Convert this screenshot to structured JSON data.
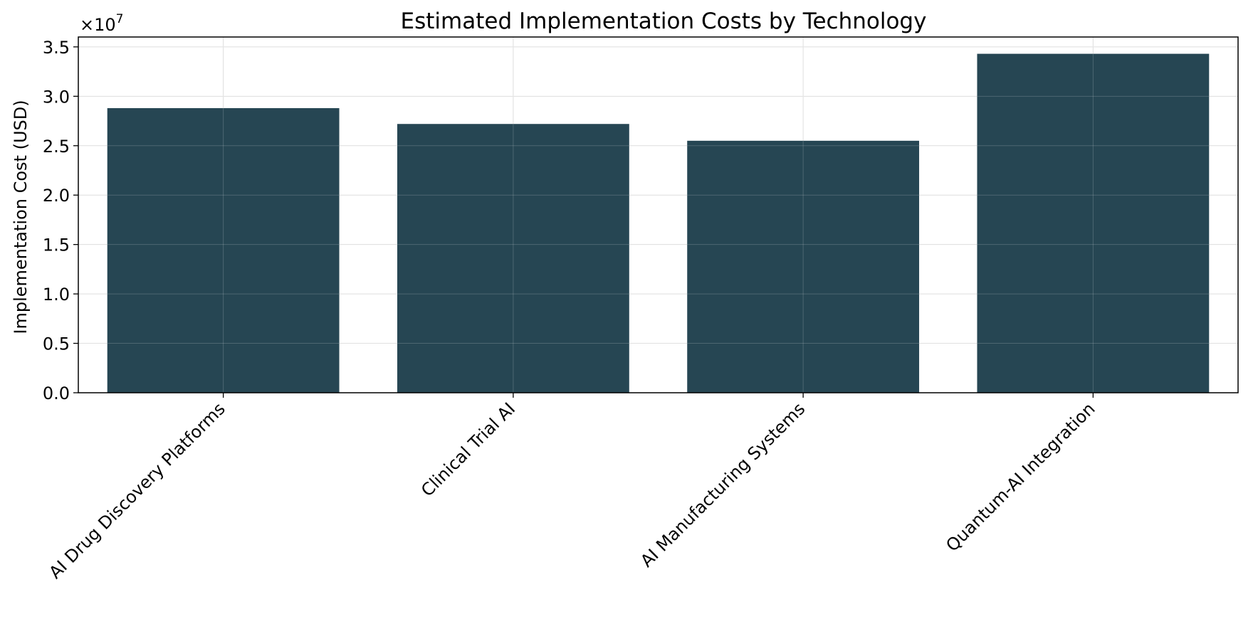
{
  "chart_data": {
    "type": "bar",
    "title": "Estimated Implementation Costs by Technology",
    "xlabel": "",
    "ylabel": "Implementation Cost (USD)",
    "offset_text_prefix": "×10",
    "offset_text_exponent": "7",
    "offset_multiplier": 10000000,
    "categories": [
      "AI Drug Discovery Platforms",
      "Clinical Trial AI",
      "AI Manufacturing Systems",
      "Quantum-AI Integration"
    ],
    "values": [
      28800000,
      27200000,
      25500000,
      34300000
    ],
    "ylim": [
      0,
      36000000
    ],
    "yticks": [
      0,
      5000000,
      10000000,
      15000000,
      20000000,
      25000000,
      30000000,
      35000000
    ],
    "ytick_labels": [
      "0.0",
      "0.5",
      "1.0",
      "1.5",
      "2.0",
      "2.5",
      "3.0",
      "3.5"
    ],
    "grid": true,
    "bar_color": "#264653",
    "grid_color": "#d9d9d9"
  }
}
